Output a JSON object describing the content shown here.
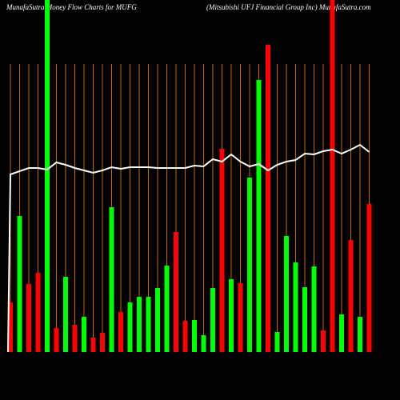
{
  "chart_data": {
    "type": "bar",
    "title": "MunafaSutra  Money Flow  Charts for MUFG",
    "subtitle": "(Mitsubishi   UFJ Financial Group Inc) MunafaSutra.com",
    "categories": [
      null,
      null,
      null,
      null,
      null,
      null,
      null,
      null,
      null,
      null,
      null,
      null,
      null,
      null,
      null,
      null,
      null,
      null,
      null,
      null,
      null,
      null,
      null,
      null,
      null,
      null,
      null,
      null,
      null,
      null,
      null,
      null,
      null,
      null,
      null,
      null,
      null,
      null,
      null,
      null
    ],
    "values": [
      62,
      170,
      85,
      99,
      440,
      30,
      94,
      34,
      44,
      18,
      24,
      181,
      50,
      62,
      69,
      69,
      80,
      108,
      150,
      39,
      40,
      21,
      80,
      254,
      91,
      86,
      218,
      340,
      384,
      25,
      145,
      112,
      81,
      107,
      27,
      440,
      47,
      140,
      44,
      185
    ],
    "colors": [
      "#ff0000",
      "#00ff00",
      "#ff0000",
      "#ff0000",
      "#00ff00",
      "#ff0000",
      "#00ff00",
      "#ff0000",
      "#00ff00",
      "#ff0000",
      "#ff0000",
      "#00ff00",
      "#ff0000",
      "#00ff00",
      "#00ff00",
      "#00ff00",
      "#00ff00",
      "#00ff00",
      "#ff0000",
      "#ff0000",
      "#00ff00",
      "#00ff00",
      "#00ff00",
      "#ff0000",
      "#00ff00",
      "#ff0000",
      "#00ff00",
      "#00ff00",
      "#ff0000",
      "#00ff00",
      "#00ff00",
      "#00ff00",
      "#00ff00",
      "#00ff00",
      "#ff0000",
      "#ff0000",
      "#00ff00",
      "#ff0000",
      "#00ff00",
      "#ff0000"
    ],
    "line_values": [
      222,
      226,
      230,
      230,
      228,
      237,
      234,
      230,
      227,
      224,
      227,
      231,
      229,
      231,
      231,
      231,
      230,
      230,
      230,
      230,
      233,
      232,
      241,
      238,
      247,
      238,
      232,
      235,
      227,
      234,
      238,
      240,
      248,
      247,
      251,
      253,
      248,
      253,
      259,
      250
    ],
    "line_color": "#ffffff",
    "ylim": [
      0,
      440
    ],
    "grid": true,
    "grid_color": "#b8680a"
  }
}
